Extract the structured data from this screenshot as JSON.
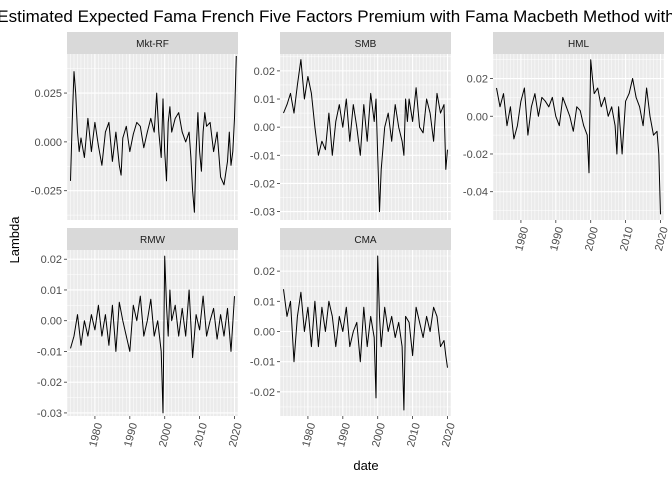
{
  "chart_data": {
    "type": "line",
    "title": "Estimated Expected Fama French Five Factors Premium with Fama Macbeth Method with",
    "xlabel": "date",
    "ylabel": "Lambda",
    "xlim": [
      1972,
      2021
    ],
    "x_ticks": [
      1980,
      1990,
      2000,
      2010,
      2020
    ],
    "x_tick_labels": [
      "1980",
      "1990",
      "2000",
      "2010",
      "2020"
    ],
    "grid": true,
    "facet_layout": "wrap-3-columns",
    "scales": "free_y",
    "line_color": "#000000",
    "panel_background": "#ebebeb",
    "strip_background": "#d9d9d9",
    "panels": [
      {
        "name": "Mkt-RF",
        "ylim": [
          -0.04,
          0.045
        ],
        "y_ticks": [
          -0.025,
          0.0,
          0.025
        ],
        "y_tick_labels": [
          "-0.025",
          "0.000",
          "0.025"
        ],
        "x": [
          1973.0,
          1973.5,
          1974.0,
          1974.5,
          1975.0,
          1975.5,
          1976.0,
          1977.0,
          1978.0,
          1979.0,
          1980.0,
          1981.0,
          1982.0,
          1983.0,
          1984.0,
          1985.0,
          1986.0,
          1987.0,
          1987.5,
          1988.0,
          1989.0,
          1990.0,
          1991.0,
          1992.0,
          1993.0,
          1994.0,
          1995.0,
          1996.0,
          1997.0,
          1997.7,
          1998.3,
          1999.0,
          1999.5,
          2000.0,
          2000.5,
          2001.0,
          2001.5,
          2002.0,
          2003.0,
          2004.0,
          2005.0,
          2006.0,
          2007.0,
          2007.5,
          2008.0,
          2008.5,
          2009.0,
          2009.5,
          2010.0,
          2010.5,
          2011.0,
          2011.5,
          2012.0,
          2013.0,
          2014.0,
          2015.0,
          2016.0,
          2017.0,
          2018.0,
          2018.5,
          2019.0,
          2019.5,
          2020.0,
          2020.5
        ],
        "y": [
          -0.02,
          0.01,
          0.036,
          0.025,
          0.005,
          -0.005,
          0.002,
          -0.008,
          0.012,
          -0.005,
          0.01,
          -0.002,
          -0.012,
          0.005,
          0.01,
          -0.01,
          0.005,
          -0.012,
          -0.017,
          0.002,
          0.008,
          -0.005,
          0.004,
          0.01,
          0.008,
          -0.003,
          0.005,
          0.012,
          0.005,
          0.025,
          0.005,
          -0.008,
          0.022,
          -0.005,
          -0.02,
          0.01,
          0.018,
          0.005,
          0.012,
          0.015,
          0.005,
          0.0,
          0.005,
          -0.008,
          -0.025,
          -0.036,
          -0.005,
          0.015,
          -0.005,
          -0.015,
          0.005,
          0.015,
          0.008,
          0.01,
          -0.005,
          0.005,
          -0.018,
          -0.022,
          -0.01,
          0.005,
          -0.012,
          -0.005,
          0.012,
          0.044
        ]
      },
      {
        "name": "SMB",
        "ylim": [
          -0.033,
          0.026
        ],
        "y_ticks": [
          -0.03,
          -0.02,
          -0.01,
          0.0,
          0.01,
          0.02
        ],
        "y_tick_labels": [
          "-0.03",
          "-0.02",
          "-0.01",
          "0.00",
          "0.01",
          "0.02"
        ],
        "x": [
          1973.0,
          1974.0,
          1975.0,
          1976.0,
          1977.0,
          1978.0,
          1979.0,
          1980.0,
          1981.0,
          1982.0,
          1983.0,
          1984.0,
          1985.0,
          1986.0,
          1987.0,
          1988.0,
          1989.0,
          1990.0,
          1991.0,
          1992.0,
          1993.0,
          1994.0,
          1995.0,
          1996.0,
          1997.0,
          1998.0,
          1999.0,
          1999.5,
          2000.0,
          2000.5,
          2001.0,
          2002.0,
          2003.0,
          2004.0,
          2005.0,
          2006.0,
          2007.0,
          2007.5,
          2008.0,
          2008.5,
          2009.0,
          2010.0,
          2011.0,
          2012.0,
          2013.0,
          2014.0,
          2015.0,
          2016.0,
          2017.0,
          2018.0,
          2019.0,
          2019.5,
          2020.0
        ],
        "y": [
          0.005,
          0.008,
          0.012,
          0.005,
          0.015,
          0.024,
          0.01,
          0.018,
          0.012,
          0.0,
          -0.01,
          -0.005,
          -0.008,
          0.005,
          -0.01,
          0.002,
          0.008,
          0.0,
          0.01,
          -0.005,
          0.008,
          0.0,
          -0.01,
          0.008,
          -0.005,
          0.012,
          0.002,
          0.01,
          -0.01,
          -0.03,
          -0.015,
          0.0,
          0.005,
          -0.005,
          0.008,
          0.0,
          -0.005,
          -0.01,
          0.01,
          0.002,
          0.01,
          0.002,
          0.014,
          0.0,
          -0.002,
          0.01,
          0.005,
          -0.005,
          0.012,
          0.005,
          0.008,
          -0.015,
          -0.008
        ]
      },
      {
        "name": "HML",
        "ylim": [
          -0.055,
          0.033
        ],
        "y_ticks": [
          -0.04,
          -0.02,
          0.0,
          0.02
        ],
        "y_tick_labels": [
          "-0.04",
          "-0.02",
          "0.00",
          "0.02"
        ],
        "x": [
          1973.0,
          1974.0,
          1975.0,
          1976.0,
          1977.0,
          1978.0,
          1979.0,
          1980.0,
          1981.0,
          1982.0,
          1983.0,
          1984.0,
          1985.0,
          1986.0,
          1987.0,
          1988.0,
          1989.0,
          1990.0,
          1991.0,
          1992.0,
          1993.0,
          1994.0,
          1995.0,
          1996.0,
          1997.0,
          1998.0,
          1999.0,
          1999.5,
          2000.0,
          2000.5,
          2001.0,
          2002.0,
          2003.0,
          2004.0,
          2005.0,
          2006.0,
          2007.0,
          2007.5,
          2008.0,
          2009.0,
          2010.0,
          2011.0,
          2012.0,
          2013.0,
          2014.0,
          2015.0,
          2016.0,
          2017.0,
          2018.0,
          2019.0,
          2019.5,
          2020.0
        ],
        "y": [
          0.015,
          0.005,
          0.012,
          -0.005,
          0.005,
          -0.012,
          -0.005,
          0.008,
          0.015,
          -0.01,
          0.005,
          0.012,
          0.0,
          0.01,
          0.008,
          0.005,
          0.01,
          0.0,
          -0.005,
          0.01,
          0.005,
          0.0,
          -0.008,
          0.005,
          0.003,
          -0.005,
          -0.01,
          -0.03,
          0.03,
          0.02,
          0.012,
          0.015,
          0.005,
          0.01,
          0.0,
          0.005,
          -0.005,
          -0.02,
          0.005,
          -0.02,
          0.008,
          0.012,
          0.02,
          0.01,
          0.005,
          -0.005,
          0.015,
          0.0,
          -0.01,
          -0.008,
          -0.02,
          -0.052
        ]
      },
      {
        "name": "RMW",
        "ylim": [
          -0.031,
          0.023
        ],
        "y_ticks": [
          -0.03,
          -0.02,
          -0.01,
          0.0,
          0.01,
          0.02
        ],
        "y_tick_labels": [
          "-0.03",
          "-0.02",
          "-0.01",
          "0.00",
          "0.01",
          "0.02"
        ],
        "x": [
          1973.0,
          1974.0,
          1975.0,
          1976.0,
          1977.0,
          1978.0,
          1979.0,
          1980.0,
          1981.0,
          1982.0,
          1983.0,
          1984.0,
          1985.0,
          1986.0,
          1987.0,
          1988.0,
          1989.0,
          1990.0,
          1991.0,
          1992.0,
          1993.0,
          1994.0,
          1995.0,
          1996.0,
          1997.0,
          1998.0,
          1999.0,
          1999.5,
          2000.0,
          2000.5,
          2001.0,
          2001.5,
          2002.0,
          2003.0,
          2004.0,
          2005.0,
          2006.0,
          2007.0,
          2008.0,
          2009.0,
          2010.0,
          2011.0,
          2012.0,
          2013.0,
          2014.0,
          2015.0,
          2016.0,
          2017.0,
          2018.0,
          2019.0,
          2020.0
        ],
        "y": [
          -0.009,
          -0.005,
          0.002,
          -0.008,
          0.0,
          -0.005,
          0.002,
          -0.003,
          0.005,
          -0.005,
          0.002,
          -0.008,
          0.005,
          -0.01,
          0.006,
          0.0,
          -0.005,
          -0.01,
          0.005,
          0.0,
          0.008,
          -0.005,
          0.0,
          0.007,
          -0.005,
          0.0,
          -0.01,
          -0.03,
          0.021,
          0.005,
          -0.005,
          0.01,
          0.0,
          0.005,
          -0.005,
          0.004,
          -0.005,
          0.01,
          -0.012,
          0.002,
          -0.003,
          0.008,
          -0.005,
          0.0,
          0.004,
          -0.006,
          0.002,
          -0.005,
          0.004,
          -0.01,
          0.008
        ]
      },
      {
        "name": "CMA",
        "ylim": [
          -0.028,
          0.027
        ],
        "y_ticks": [
          -0.02,
          -0.01,
          0.0,
          0.01,
          0.02
        ],
        "y_tick_labels": [
          "-0.02",
          "-0.01",
          "0.00",
          "0.01",
          "0.02"
        ],
        "x": [
          1973.0,
          1974.0,
          1975.0,
          1976.0,
          1977.0,
          1978.0,
          1979.0,
          1980.0,
          1981.0,
          1982.0,
          1983.0,
          1984.0,
          1985.0,
          1986.0,
          1987.0,
          1988.0,
          1989.0,
          1990.0,
          1991.0,
          1992.0,
          1993.0,
          1994.0,
          1995.0,
          1996.0,
          1997.0,
          1998.0,
          1999.0,
          1999.5,
          2000.0,
          2000.5,
          2001.0,
          2002.0,
          2003.0,
          2004.0,
          2005.0,
          2006.0,
          2007.0,
          2007.5,
          2008.0,
          2009.0,
          2010.0,
          2011.0,
          2012.0,
          2013.0,
          2014.0,
          2015.0,
          2016.0,
          2017.0,
          2018.0,
          2019.0,
          2019.5,
          2020.0
        ],
        "y": [
          0.014,
          0.005,
          0.01,
          -0.01,
          0.005,
          0.013,
          0.0,
          0.008,
          -0.005,
          0.01,
          -0.005,
          0.008,
          0.0,
          0.01,
          0.005,
          -0.005,
          0.005,
          0.0,
          0.008,
          -0.005,
          0.0,
          0.003,
          -0.01,
          0.008,
          -0.005,
          0.005,
          -0.002,
          -0.022,
          0.025,
          0.005,
          -0.005,
          0.008,
          0.0,
          0.005,
          -0.002,
          0.003,
          -0.005,
          -0.026,
          0.005,
          0.003,
          -0.008,
          0.008,
          0.003,
          -0.002,
          0.005,
          0.0,
          0.008,
          0.005,
          -0.005,
          -0.003,
          -0.008,
          -0.012
        ]
      }
    ]
  }
}
